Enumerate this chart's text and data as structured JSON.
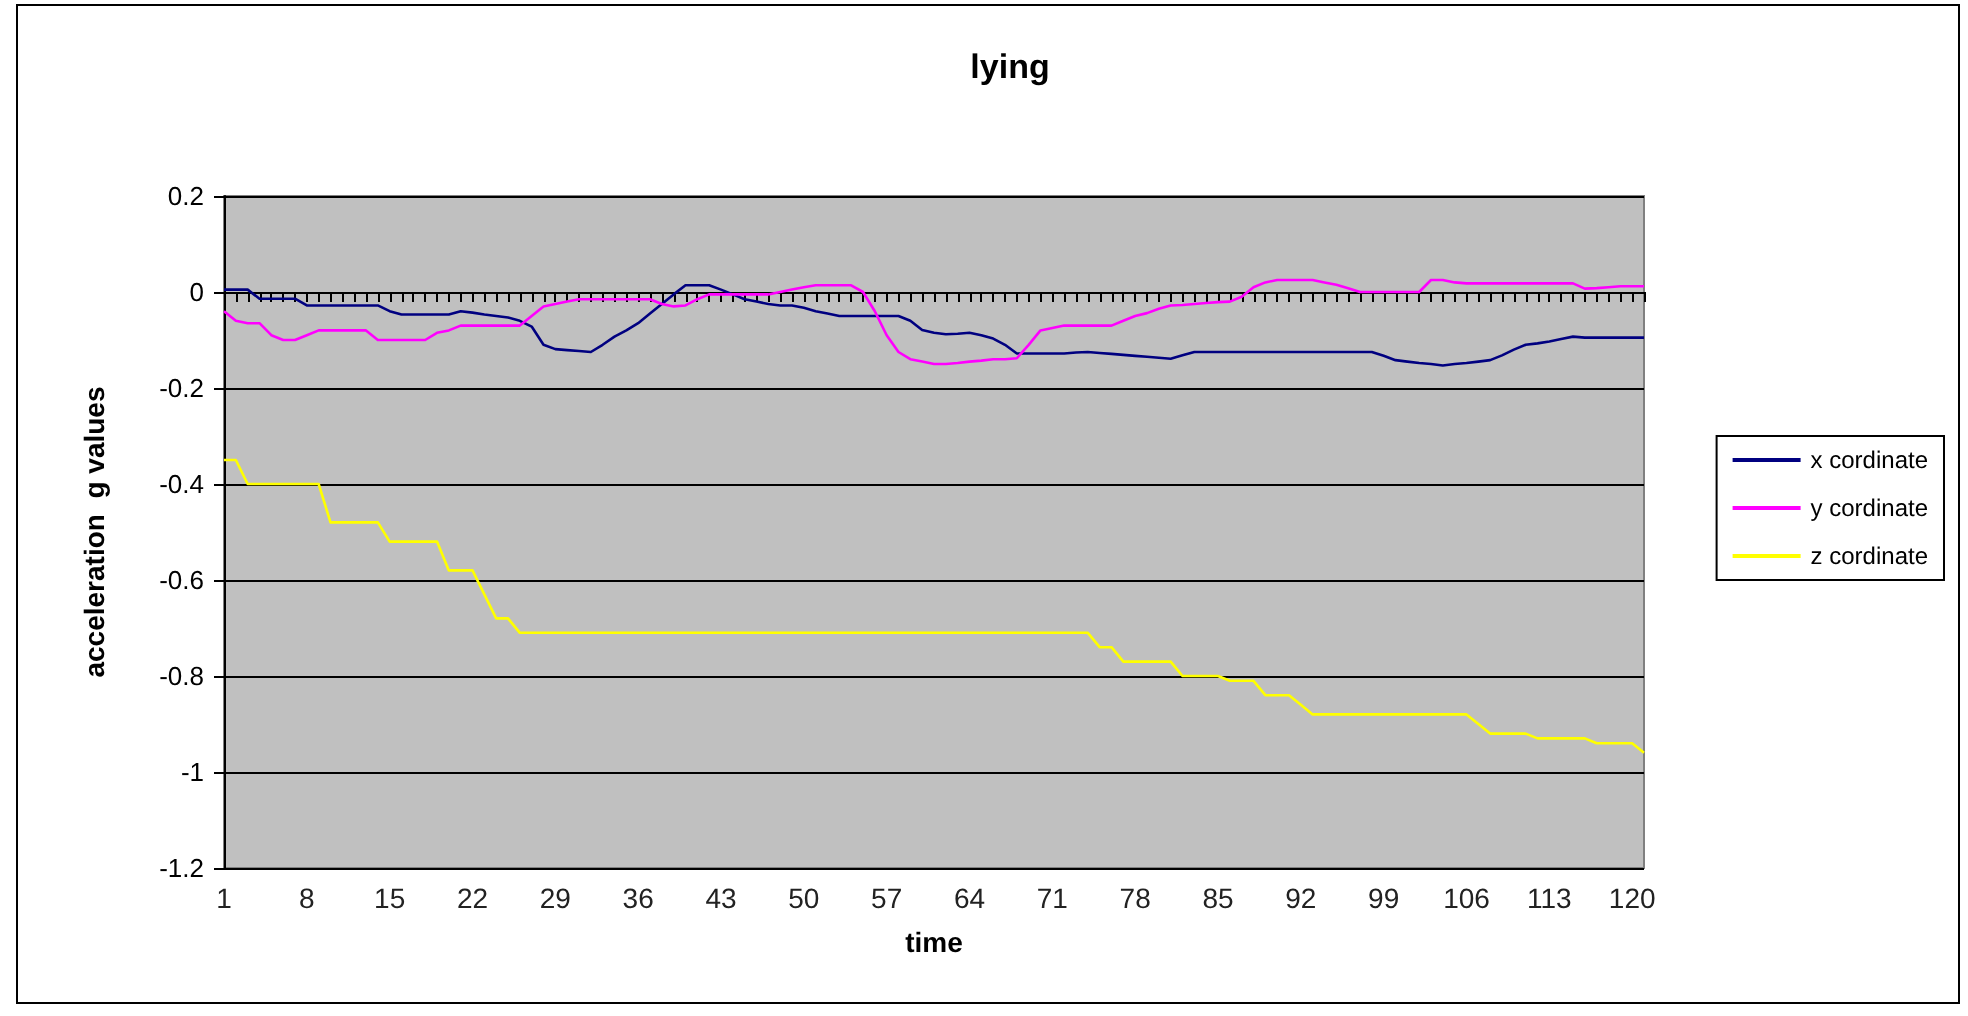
{
  "chart_data": {
    "type": "line",
    "title": "lying",
    "xlabel": "time",
    "ylabel": "acceleration  g values",
    "categories": [
      "1",
      null,
      null,
      null,
      null,
      null,
      null,
      "8",
      null,
      null,
      null,
      null,
      null,
      null,
      "15",
      null,
      null,
      null,
      null,
      null,
      null,
      "22",
      null,
      null,
      null,
      null,
      null,
      null,
      "29",
      null,
      null,
      null,
      null,
      null,
      null,
      "36",
      null,
      null,
      null,
      null,
      null,
      null,
      "43",
      null,
      null,
      null,
      null,
      null,
      null,
      "50",
      null,
      null,
      null,
      null,
      null,
      null,
      "57",
      null,
      null,
      null,
      null,
      null,
      null,
      "64",
      null,
      null,
      null,
      null,
      null,
      null,
      "71",
      null,
      null,
      null,
      null,
      null,
      null,
      "78",
      null,
      null,
      null,
      null,
      null,
      null,
      "85",
      null,
      null,
      null,
      null,
      null,
      null,
      "92",
      null,
      null,
      null,
      null,
      null,
      null,
      "99",
      null,
      null,
      null,
      null,
      null,
      null,
      "106",
      null,
      null,
      null,
      null,
      null,
      null,
      "113",
      null,
      null,
      null,
      null,
      null,
      null,
      "120",
      null
    ],
    "series": [
      {
        "name": "x cordinate",
        "color": "#000080",
        "values": [
          0.005,
          0.005,
          0.005,
          -0.014,
          -0.014,
          -0.014,
          -0.014,
          -0.028,
          -0.028,
          -0.028,
          -0.028,
          -0.028,
          -0.028,
          -0.028,
          -0.04,
          -0.047,
          -0.047,
          -0.047,
          -0.047,
          -0.047,
          -0.04,
          -0.043,
          -0.047,
          -0.05,
          -0.053,
          -0.06,
          -0.072,
          -0.11,
          -0.119,
          -0.121,
          -0.123,
          -0.125,
          -0.11,
          -0.093,
          -0.08,
          -0.065,
          -0.045,
          -0.025,
          -0.005,
          0.014,
          0.014,
          0.014,
          0.005,
          -0.005,
          -0.015,
          -0.02,
          -0.025,
          -0.028,
          -0.028,
          -0.033,
          -0.04,
          -0.045,
          -0.05,
          -0.05,
          -0.05,
          -0.05,
          -0.05,
          -0.05,
          -0.06,
          -0.079,
          -0.085,
          -0.088,
          -0.087,
          -0.085,
          -0.09,
          -0.097,
          -0.11,
          -0.128,
          -0.128,
          -0.128,
          -0.128,
          -0.128,
          -0.126,
          -0.125,
          -0.127,
          -0.129,
          -0.131,
          -0.133,
          -0.135,
          -0.137,
          -0.139,
          -0.132,
          -0.125,
          -0.125,
          -0.125,
          -0.125,
          -0.125,
          -0.125,
          -0.125,
          -0.125,
          -0.125,
          -0.125,
          -0.125,
          -0.125,
          -0.125,
          -0.125,
          -0.125,
          -0.125,
          -0.133,
          -0.142,
          -0.145,
          -0.148,
          -0.15,
          -0.153,
          -0.15,
          -0.148,
          -0.145,
          -0.142,
          -0.132,
          -0.12,
          -0.11,
          -0.107,
          -0.103,
          -0.098,
          -0.093,
          -0.095,
          -0.095,
          -0.095,
          -0.095,
          -0.095,
          -0.095
        ]
      },
      {
        "name": "y cordinate",
        "color": "#ff00ff",
        "values": [
          -0.04,
          -0.06,
          -0.065,
          -0.065,
          -0.09,
          -0.1,
          -0.1,
          -0.09,
          -0.08,
          -0.08,
          -0.08,
          -0.08,
          -0.08,
          -0.1,
          -0.1,
          -0.1,
          -0.1,
          -0.1,
          -0.085,
          -0.08,
          -0.07,
          -0.07,
          -0.07,
          -0.07,
          -0.07,
          -0.07,
          -0.05,
          -0.03,
          -0.025,
          -0.02,
          -0.015,
          -0.015,
          -0.015,
          -0.015,
          -0.015,
          -0.015,
          -0.015,
          -0.025,
          -0.03,
          -0.028,
          -0.015,
          -0.005,
          -0.005,
          -0.005,
          -0.005,
          -0.005,
          -0.005,
          0,
          0.005,
          0.01,
          0.014,
          0.014,
          0.014,
          0.014,
          0,
          -0.04,
          -0.09,
          -0.125,
          -0.14,
          -0.145,
          -0.15,
          -0.15,
          -0.148,
          -0.145,
          -0.143,
          -0.14,
          -0.14,
          -0.138,
          -0.11,
          -0.08,
          -0.075,
          -0.07,
          -0.07,
          -0.07,
          -0.07,
          -0.07,
          -0.06,
          -0.05,
          -0.044,
          -0.035,
          -0.028,
          -0.027,
          -0.025,
          -0.023,
          -0.021,
          -0.02,
          -0.01,
          0.01,
          0.02,
          0.025,
          0.025,
          0.025,
          0.025,
          0.02,
          0.015,
          0.008,
          0,
          0,
          0,
          0,
          0,
          0,
          0.025,
          0.025,
          0.02,
          0.018,
          0.018,
          0.018,
          0.018,
          0.018,
          0.018,
          0.018,
          0.018,
          0.018,
          0.018,
          0.007,
          0.008,
          0.01,
          0.012,
          0.012,
          0.012
        ]
      },
      {
        "name": "z cordinate",
        "color": "#ffff00",
        "values": [
          -0.35,
          -0.35,
          -0.4,
          -0.4,
          -0.4,
          -0.4,
          -0.4,
          -0.4,
          -0.4,
          -0.48,
          -0.48,
          -0.48,
          -0.48,
          -0.48,
          -0.52,
          -0.52,
          -0.52,
          -0.52,
          -0.52,
          -0.58,
          -0.58,
          -0.58,
          -0.63,
          -0.68,
          -0.68,
          -0.71,
          -0.71,
          -0.71,
          -0.71,
          -0.71,
          -0.71,
          -0.71,
          -0.71,
          -0.71,
          -0.71,
          -0.71,
          -0.71,
          -0.71,
          -0.71,
          -0.71,
          -0.71,
          -0.71,
          -0.71,
          -0.71,
          -0.71,
          -0.71,
          -0.71,
          -0.71,
          -0.71,
          -0.71,
          -0.71,
          -0.71,
          -0.71,
          -0.71,
          -0.71,
          -0.71,
          -0.71,
          -0.71,
          -0.71,
          -0.71,
          -0.71,
          -0.71,
          -0.71,
          -0.71,
          -0.71,
          -0.71,
          -0.71,
          -0.71,
          -0.71,
          -0.71,
          -0.71,
          -0.71,
          -0.71,
          -0.71,
          -0.74,
          -0.74,
          -0.77,
          -0.77,
          -0.77,
          -0.77,
          -0.77,
          -0.8,
          -0.8,
          -0.8,
          -0.8,
          -0.81,
          -0.81,
          -0.81,
          -0.84,
          -0.84,
          -0.84,
          -0.86,
          -0.88,
          -0.88,
          -0.88,
          -0.88,
          -0.88,
          -0.88,
          -0.88,
          -0.88,
          -0.88,
          -0.88,
          -0.88,
          -0.88,
          -0.88,
          -0.88,
          -0.9,
          -0.92,
          -0.92,
          -0.92,
          -0.92,
          -0.93,
          -0.93,
          -0.93,
          -0.93,
          -0.93,
          -0.94,
          -0.94,
          -0.94,
          -0.94,
          -0.96
        ]
      }
    ],
    "ylim": [
      -1.2,
      0.2
    ],
    "yticks": [
      -1.2,
      -1,
      -0.8,
      -0.6,
      -0.4,
      -0.2,
      0,
      0.2
    ],
    "grid": "y",
    "legend": "right",
    "marker": "none",
    "line_style": "solid"
  }
}
